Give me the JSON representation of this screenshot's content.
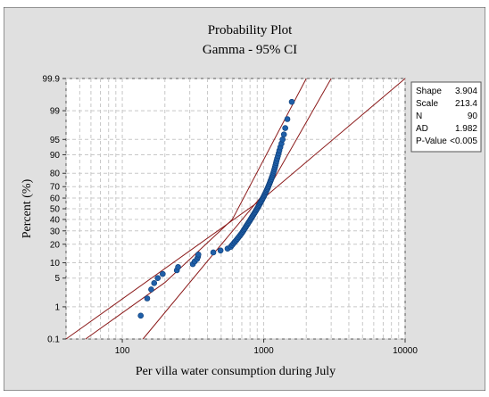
{
  "chart_data": {
    "type": "scatter",
    "title": "Probability Plot",
    "subtitle": "Gamma - 95% CI",
    "xlabel": "Per villa water consumption during July",
    "ylabel": "Percent (%)",
    "x_scale": "log",
    "y_scale": "gamma-probability",
    "xlim": [
      40,
      10000
    ],
    "x_ticks": [
      100,
      1000,
      10000
    ],
    "x_tick_labels": [
      "100",
      "1000",
      "10000"
    ],
    "y_ticks": [
      0.1,
      1,
      5,
      10,
      20,
      30,
      40,
      50,
      60,
      70,
      80,
      90,
      95,
      99,
      99.9
    ],
    "y_tick_labels": [
      "0.1",
      "1",
      "5",
      "10",
      "20",
      "30",
      "40",
      "50",
      "60",
      "70",
      "80",
      "90",
      "95",
      "99",
      "99.9"
    ],
    "grid": true,
    "colors": {
      "points": "#1f5fa8",
      "fit_line": "#8b1a1a",
      "ci_lines": "#8b1a1a",
      "plot_bg": "#ffffff",
      "frame_bg": "#e0e0e0",
      "grid": "#c8c8c8"
    },
    "series": [
      {
        "x": [
          135,
          150,
          160,
          168,
          178,
          193,
          243,
          248,
          315,
          325,
          338,
          343,
          345,
          440,
          495,
          555,
          585,
          598,
          612,
          625,
          640,
          652,
          665,
          678,
          690,
          702,
          712,
          722,
          732,
          742,
          752,
          762,
          772,
          782,
          792,
          802,
          812,
          822,
          832,
          842,
          852,
          862,
          872,
          882,
          892,
          902,
          912,
          922,
          932,
          942,
          952,
          962,
          972,
          982,
          992,
          1002,
          1012,
          1022,
          1032,
          1042,
          1052,
          1062,
          1072,
          1082,
          1092,
          1102,
          1112,
          1122,
          1132,
          1142,
          1152,
          1162,
          1172,
          1182,
          1192,
          1202,
          1212,
          1222,
          1232,
          1245,
          1260,
          1275,
          1290,
          1310,
          1335,
          1360,
          1390,
          1420,
          1470,
          1580
        ],
        "y": [
          0.56,
          1.67,
          2.78,
          3.89,
          5.0,
          6.11,
          7.22,
          8.33,
          9.44,
          10.56,
          11.67,
          12.78,
          13.89,
          15.0,
          16.11,
          17.22,
          18.33,
          19.44,
          20.56,
          21.67,
          22.78,
          23.89,
          25.0,
          26.11,
          27.22,
          28.33,
          29.44,
          30.56,
          31.67,
          32.78,
          33.89,
          35.0,
          36.11,
          37.22,
          38.33,
          39.44,
          40.56,
          41.67,
          42.78,
          43.89,
          45.0,
          46.11,
          47.22,
          48.33,
          49.44,
          50.56,
          51.67,
          52.78,
          53.89,
          55.0,
          56.11,
          57.22,
          58.33,
          59.44,
          60.56,
          61.67,
          62.78,
          63.89,
          65.0,
          66.11,
          67.22,
          68.33,
          69.44,
          70.56,
          71.67,
          72.78,
          73.89,
          75.0,
          76.11,
          77.22,
          78.33,
          79.44,
          80.56,
          81.67,
          82.78,
          83.89,
          85.0,
          86.11,
          87.22,
          88.33,
          89.44,
          90.56,
          91.67,
          92.78,
          93.89,
          95.0,
          96.11,
          97.22,
          98.33,
          99.44
        ]
      }
    ],
    "fit_line": {
      "x": [
        40,
        1000,
        10000
      ],
      "y": [
        0.05,
        60,
        99.99
      ]
    },
    "ci_upper": {
      "x": [
        55,
        200,
        600,
        2000
      ],
      "y": [
        0.1,
        4,
        40,
        99.9
      ]
    },
    "ci_lower": {
      "x": [
        140,
        450,
        1100,
        3000
      ],
      "y": [
        0.1,
        15,
        70,
        99.9
      ]
    },
    "stats_box": [
      {
        "label": "Shape",
        "value": "3.904"
      },
      {
        "label": "Scale",
        "value": "213.4"
      },
      {
        "label": "N",
        "value": "90"
      },
      {
        "label": "AD",
        "value": "1.982"
      },
      {
        "label": "P-Value",
        "value": "<0.005"
      }
    ]
  }
}
